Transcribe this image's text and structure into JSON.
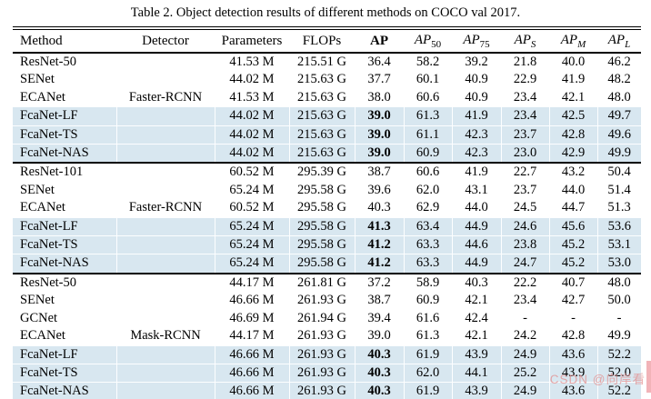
{
  "caption": "Table 2. Object detection results of different methods on COCO val 2017.",
  "watermark": {
    "text": "CSDN @向岸看"
  },
  "colors": {
    "row_highlight": "#d8e7f0",
    "watermark_text": "rgba(227,140,140,0.75)",
    "watermark_strip": "#f2b3b8"
  },
  "header": [
    {
      "label": "Method"
    },
    {
      "label": "Detector"
    },
    {
      "label": "Parameters"
    },
    {
      "label": "FLOPs"
    },
    {
      "label": "AP",
      "bold": true
    },
    {
      "base": "AP",
      "sub": "50",
      "italic": true,
      "sub_italic": false
    },
    {
      "base": "AP",
      "sub": "75",
      "italic": true,
      "sub_italic": false
    },
    {
      "base": "AP",
      "sub": "S",
      "italic": true,
      "sub_italic": true
    },
    {
      "base": "AP",
      "sub": "M",
      "italic": true,
      "sub_italic": true
    },
    {
      "base": "AP",
      "sub": "L",
      "italic": true,
      "sub_italic": true
    }
  ],
  "sections": [
    {
      "detector": "Faster-RCNN",
      "rows": [
        {
          "method": "ResNet-50",
          "detector": "",
          "values": [
            "41.53 M",
            "215.51 G",
            "36.4",
            "58.2",
            "39.2",
            "21.8",
            "40.0",
            "46.2"
          ],
          "highlight": false,
          "bold_ap": false
        },
        {
          "method": "SENet",
          "detector": "",
          "values": [
            "44.02 M",
            "215.63 G",
            "37.7",
            "60.1",
            "40.9",
            "22.9",
            "41.9",
            "48.2"
          ],
          "highlight": false,
          "bold_ap": false
        },
        {
          "method": "ECANet",
          "detector": "Faster-RCNN",
          "values": [
            "41.53 M",
            "215.63 G",
            "38.0",
            "60.6",
            "40.9",
            "23.4",
            "42.1",
            "48.0"
          ],
          "highlight": false,
          "bold_ap": false
        },
        {
          "method": "FcaNet-LF",
          "detector": "",
          "values": [
            "44.02 M",
            "215.63 G",
            "39.0",
            "61.3",
            "41.9",
            "23.4",
            "42.5",
            "49.7"
          ],
          "highlight": true,
          "bold_ap": true
        },
        {
          "method": "FcaNet-TS",
          "detector": "",
          "values": [
            "44.02 M",
            "215.63 G",
            "39.0",
            "61.1",
            "42.3",
            "23.7",
            "42.8",
            "49.6"
          ],
          "highlight": true,
          "bold_ap": true
        },
        {
          "method": "FcaNet-NAS",
          "detector": "",
          "values": [
            "44.02 M",
            "215.63 G",
            "39.0",
            "60.9",
            "42.3",
            "23.0",
            "42.9",
            "49.9"
          ],
          "highlight": true,
          "bold_ap": true
        }
      ]
    },
    {
      "detector": "Faster-RCNN",
      "rows": [
        {
          "method": "ResNet-101",
          "detector": "",
          "values": [
            "60.52 M",
            "295.39 G",
            "38.7",
            "60.6",
            "41.9",
            "22.7",
            "43.2",
            "50.4"
          ],
          "highlight": false,
          "bold_ap": false
        },
        {
          "method": "SENet",
          "detector": "",
          "values": [
            "65.24 M",
            "295.58 G",
            "39.6",
            "62.0",
            "43.1",
            "23.7",
            "44.0",
            "51.4"
          ],
          "highlight": false,
          "bold_ap": false
        },
        {
          "method": "ECANet",
          "detector": "Faster-RCNN",
          "values": [
            "60.52 M",
            "295.58 G",
            "40.3",
            "62.9",
            "44.0",
            "24.5",
            "44.7",
            "51.3"
          ],
          "highlight": false,
          "bold_ap": false
        },
        {
          "method": "FcaNet-LF",
          "detector": "",
          "values": [
            "65.24 M",
            "295.58 G",
            "41.3",
            "63.4",
            "44.9",
            "24.6",
            "45.6",
            "53.6"
          ],
          "highlight": true,
          "bold_ap": true
        },
        {
          "method": "FcaNet-TS",
          "detector": "",
          "values": [
            "65.24 M",
            "295.58 G",
            "41.2",
            "63.3",
            "44.6",
            "23.8",
            "45.2",
            "53.1"
          ],
          "highlight": true,
          "bold_ap": true
        },
        {
          "method": "FcaNet-NAS",
          "detector": "",
          "values": [
            "65.24 M",
            "295.58 G",
            "41.2",
            "63.3",
            "44.9",
            "24.7",
            "45.2",
            "53.0"
          ],
          "highlight": true,
          "bold_ap": true
        }
      ]
    },
    {
      "detector": "Mask-RCNN",
      "rows": [
        {
          "method": "ResNet-50",
          "detector": "",
          "values": [
            "44.17 M",
            "261.81 G",
            "37.2",
            "58.9",
            "40.3",
            "22.2",
            "40.7",
            "48.0"
          ],
          "highlight": false,
          "bold_ap": false
        },
        {
          "method": "SENet",
          "detector": "",
          "values": [
            "46.66 M",
            "261.93 G",
            "38.7",
            "60.9",
            "42.1",
            "23.4",
            "42.7",
            "50.0"
          ],
          "highlight": false,
          "bold_ap": false
        },
        {
          "method": "GCNet",
          "detector": "",
          "values": [
            "46.69 M",
            "261.94 G",
            "39.4",
            "61.6",
            "42.4",
            "-",
            "-",
            "-"
          ],
          "highlight": false,
          "bold_ap": false
        },
        {
          "method": "ECANet",
          "detector": "Mask-RCNN",
          "values": [
            "44.17 M",
            "261.93 G",
            "39.0",
            "61.3",
            "42.1",
            "24.2",
            "42.8",
            "49.9"
          ],
          "highlight": false,
          "bold_ap": false
        },
        {
          "method": "FcaNet-LF",
          "detector": "",
          "values": [
            "46.66 M",
            "261.93 G",
            "40.3",
            "61.9",
            "43.9",
            "24.9",
            "43.6",
            "52.2"
          ],
          "highlight": true,
          "bold_ap": true
        },
        {
          "method": "FcaNet-TS",
          "detector": "",
          "values": [
            "46.66 M",
            "261.93 G",
            "40.3",
            "62.0",
            "44.1",
            "25.2",
            "43.9",
            "52.0"
          ],
          "highlight": true,
          "bold_ap": true
        },
        {
          "method": "FcaNet-NAS",
          "detector": "",
          "values": [
            "46.66 M",
            "261.93 G",
            "40.3",
            "61.9",
            "43.9",
            "24.9",
            "43.6",
            "52.2"
          ],
          "highlight": true,
          "bold_ap": true
        }
      ]
    }
  ]
}
